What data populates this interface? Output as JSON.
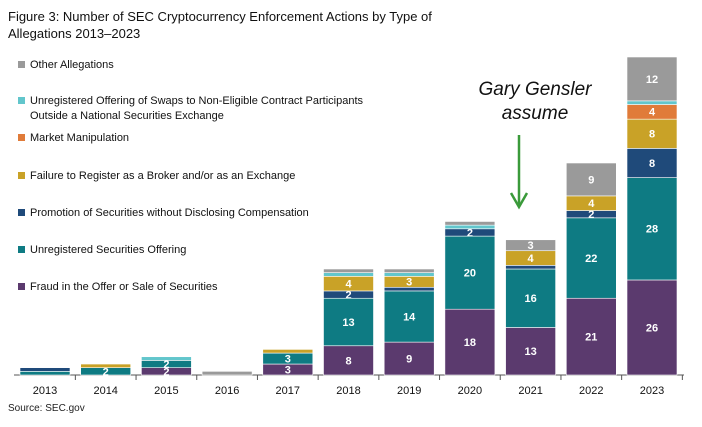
{
  "chart_data": {
    "type": "stacked_bar",
    "title": "Figure 3: Number of SEC Cryptocurrency Enforcement Actions by Type of Allegations 2013–2023",
    "source": "Source: SEC.gov",
    "annotation": "Gary Gensler assume",
    "categories": [
      "2013",
      "2014",
      "2015",
      "2016",
      "2017",
      "2018",
      "2019",
      "2020",
      "2021",
      "2022",
      "2023"
    ],
    "series": [
      {
        "name": "Fraud in the Offer or Sale of Securities",
        "color": "#5b3a6e",
        "values": [
          0,
          0,
          2,
          0,
          3,
          8,
          9,
          18,
          13,
          21,
          26
        ]
      },
      {
        "name": "Unregistered Securities Offering",
        "color": "#0e7b83",
        "values": [
          1,
          2,
          2,
          0,
          3,
          13,
          14,
          20,
          16,
          22,
          28
        ]
      },
      {
        "name": "Promotion of Securities without Disclosing Compensation",
        "color": "#1f4a7a",
        "values": [
          1,
          0,
          0,
          0,
          0,
          2,
          1,
          2,
          1,
          2,
          8
        ]
      },
      {
        "name": "Failure to Register as a Broker and/or as an Exchange",
        "color": "#c9a227",
        "values": [
          0,
          1,
          0,
          0,
          1,
          4,
          3,
          0,
          4,
          4,
          8
        ]
      },
      {
        "name": "Market Manipulation",
        "color": "#e07b39",
        "values": [
          0,
          0,
          0,
          0,
          0,
          0,
          0,
          0,
          0,
          0,
          4
        ]
      },
      {
        "name": "Unregistered Offering of Swaps to Non-Eligible Contract Participants Outside a National Securities Exchange",
        "color": "#62c6cc",
        "values": [
          0,
          0,
          1,
          0,
          0,
          1,
          1,
          1,
          0,
          0,
          1
        ]
      },
      {
        "name": "Other Allegations",
        "color": "#9a9a9a",
        "values": [
          0,
          0,
          0,
          1,
          0,
          1,
          1,
          1,
          3,
          9,
          12
        ]
      }
    ]
  }
}
